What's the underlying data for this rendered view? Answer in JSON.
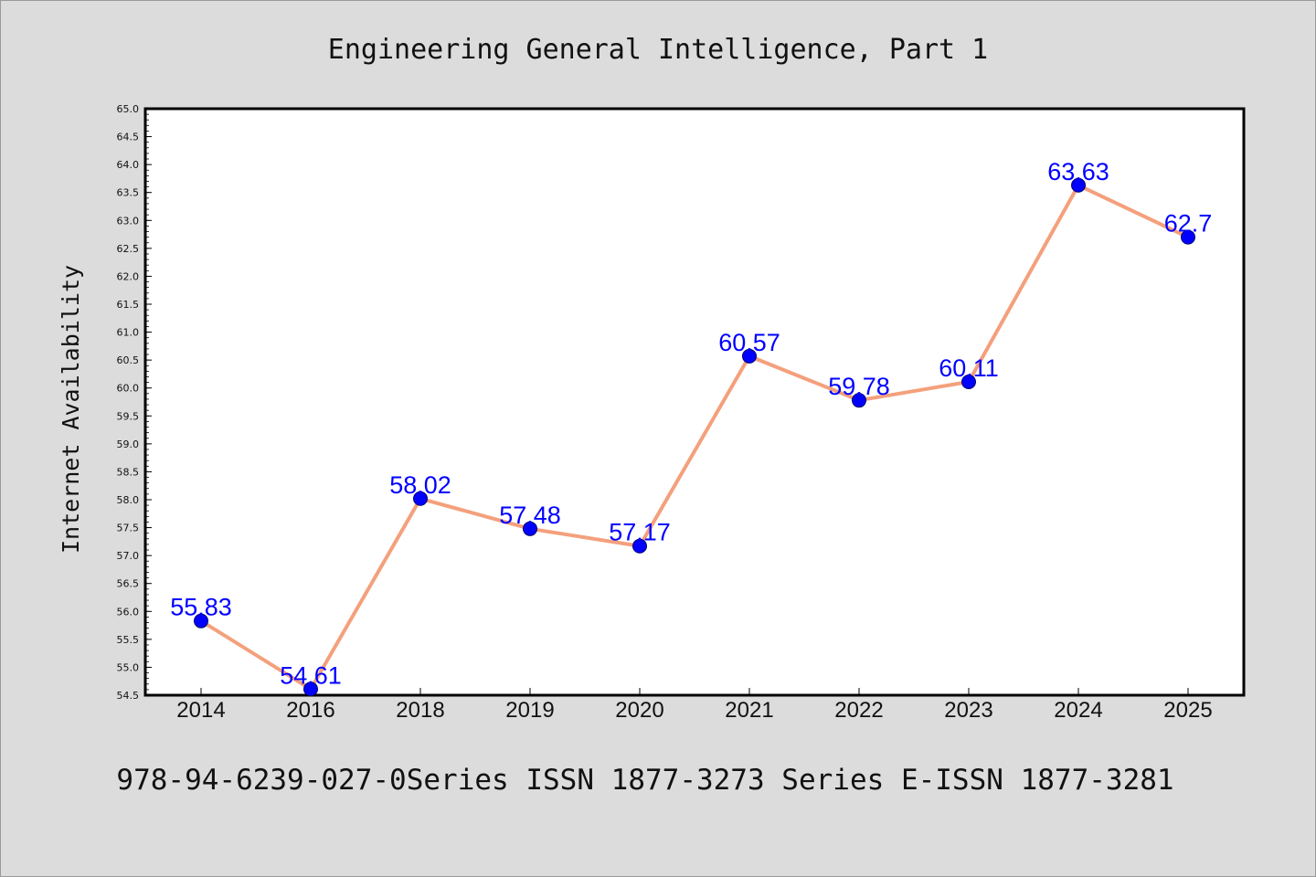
{
  "chart_data": {
    "type": "line",
    "title": "Engineering General Intelligence, Part 1",
    "xlabel": "",
    "ylabel": "Internet Availability",
    "categories": [
      "2014",
      "2016",
      "2018",
      "2019",
      "2020",
      "2021",
      "2022",
      "2023",
      "2024",
      "2025"
    ],
    "series": [
      {
        "values": [
          55.83,
          54.61,
          58.02,
          57.48,
          57.17,
          60.57,
          59.78,
          60.11,
          63.63,
          62.7
        ],
        "data_labels": [
          "55.83",
          "54.61",
          "58.02",
          "57.48",
          "57.17",
          "60.57",
          "59.78",
          "60.11",
          "63.63",
          "62.7"
        ],
        "line_color": "#f4a07c",
        "marker_color": "#0000ff"
      }
    ],
    "ylim": [
      54.5,
      65.0
    ],
    "yticks": [
      "54.5",
      "55.0",
      "55.5",
      "56.0",
      "56.5",
      "57.0",
      "57.5",
      "58.0",
      "58.5",
      "59.0",
      "59.5",
      "60.0",
      "60.5",
      "61.0",
      "61.5",
      "62.0",
      "62.5",
      "63.0",
      "63.5",
      "64.0",
      "64.5",
      "65.0"
    ],
    "grid": false,
    "legend": "none",
    "plot_background": "#ffffff",
    "page_background": "#dcdcdc"
  },
  "footer": {
    "text": "978-94-6239-027-0Series ISSN 1877-3273 Series E-ISSN 1877-3281"
  }
}
